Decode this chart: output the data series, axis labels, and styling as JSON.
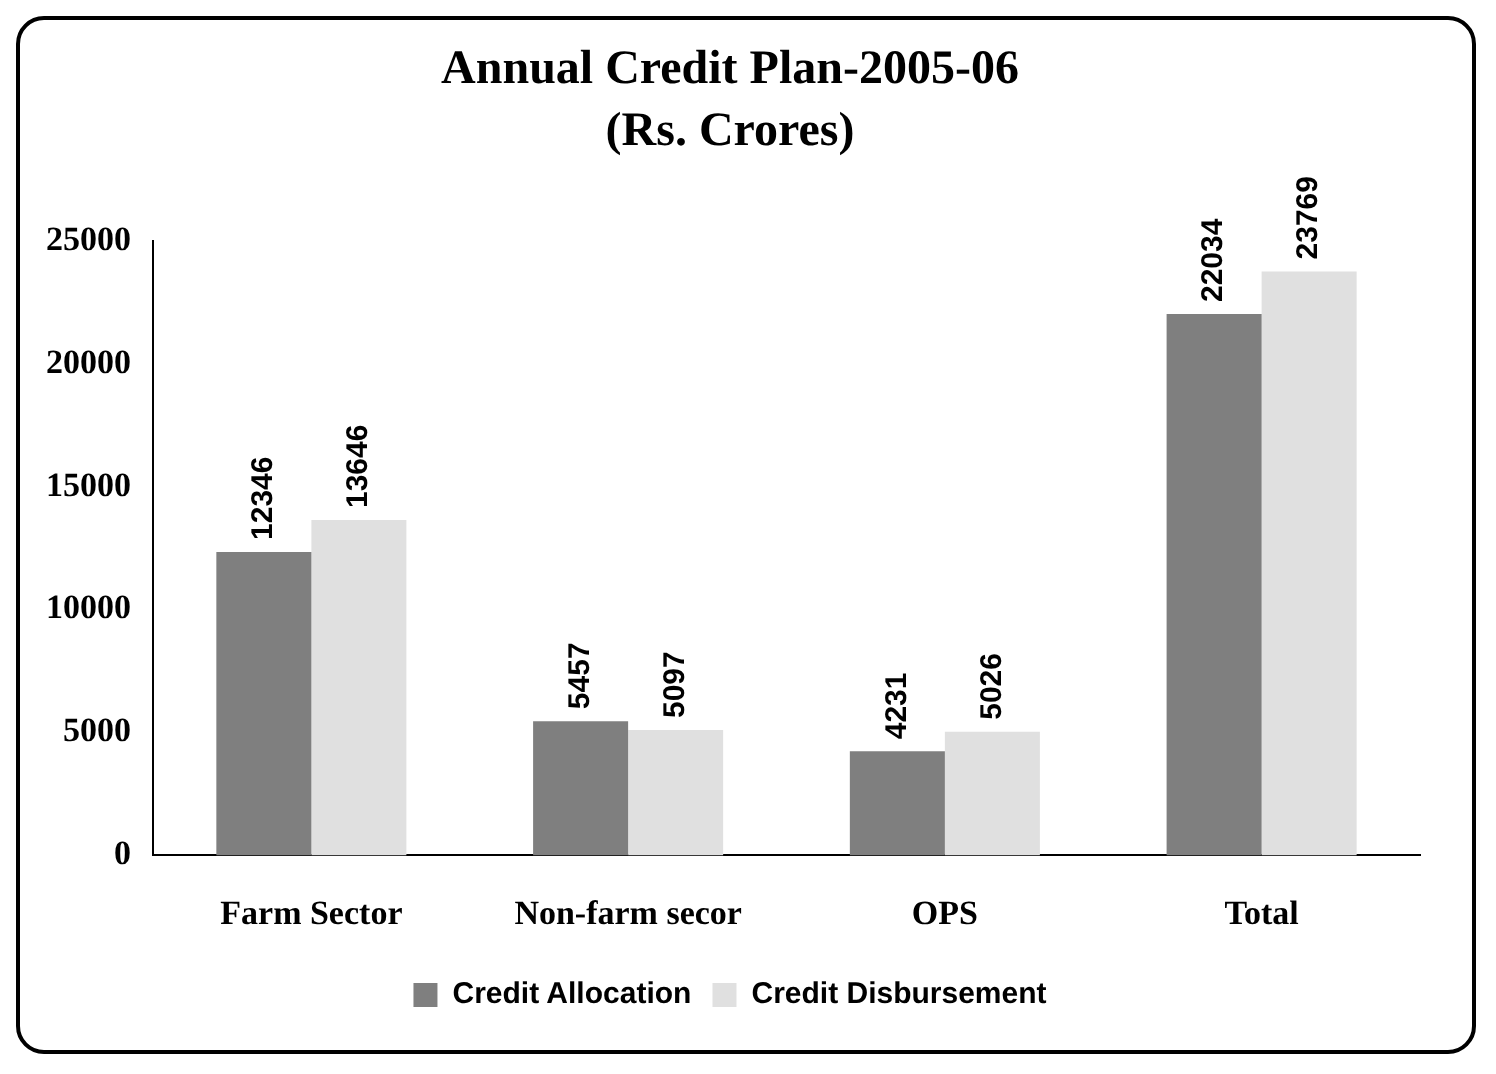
{
  "chart_data": {
    "type": "bar",
    "title": "Annual Credit Plan-2005-06",
    "subtitle": "(Rs. Crores)",
    "categories": [
      "Farm Sector",
      "Non-farm secor",
      "OPS",
      "Total"
    ],
    "series": [
      {
        "name": "Credit Allocation",
        "color": "#7f7f7f",
        "values": [
          12346,
          5457,
          4231,
          22034
        ]
      },
      {
        "name": "Credit Disbursement",
        "color": "#e0e0e0",
        "values": [
          13646,
          5097,
          5026,
          23769
        ]
      }
    ],
    "ylim": [
      0,
      25000
    ],
    "yticks": [
      0,
      5000,
      10000,
      15000,
      20000,
      25000
    ],
    "grid": false,
    "legend": "bottom",
    "data_labels": true
  }
}
